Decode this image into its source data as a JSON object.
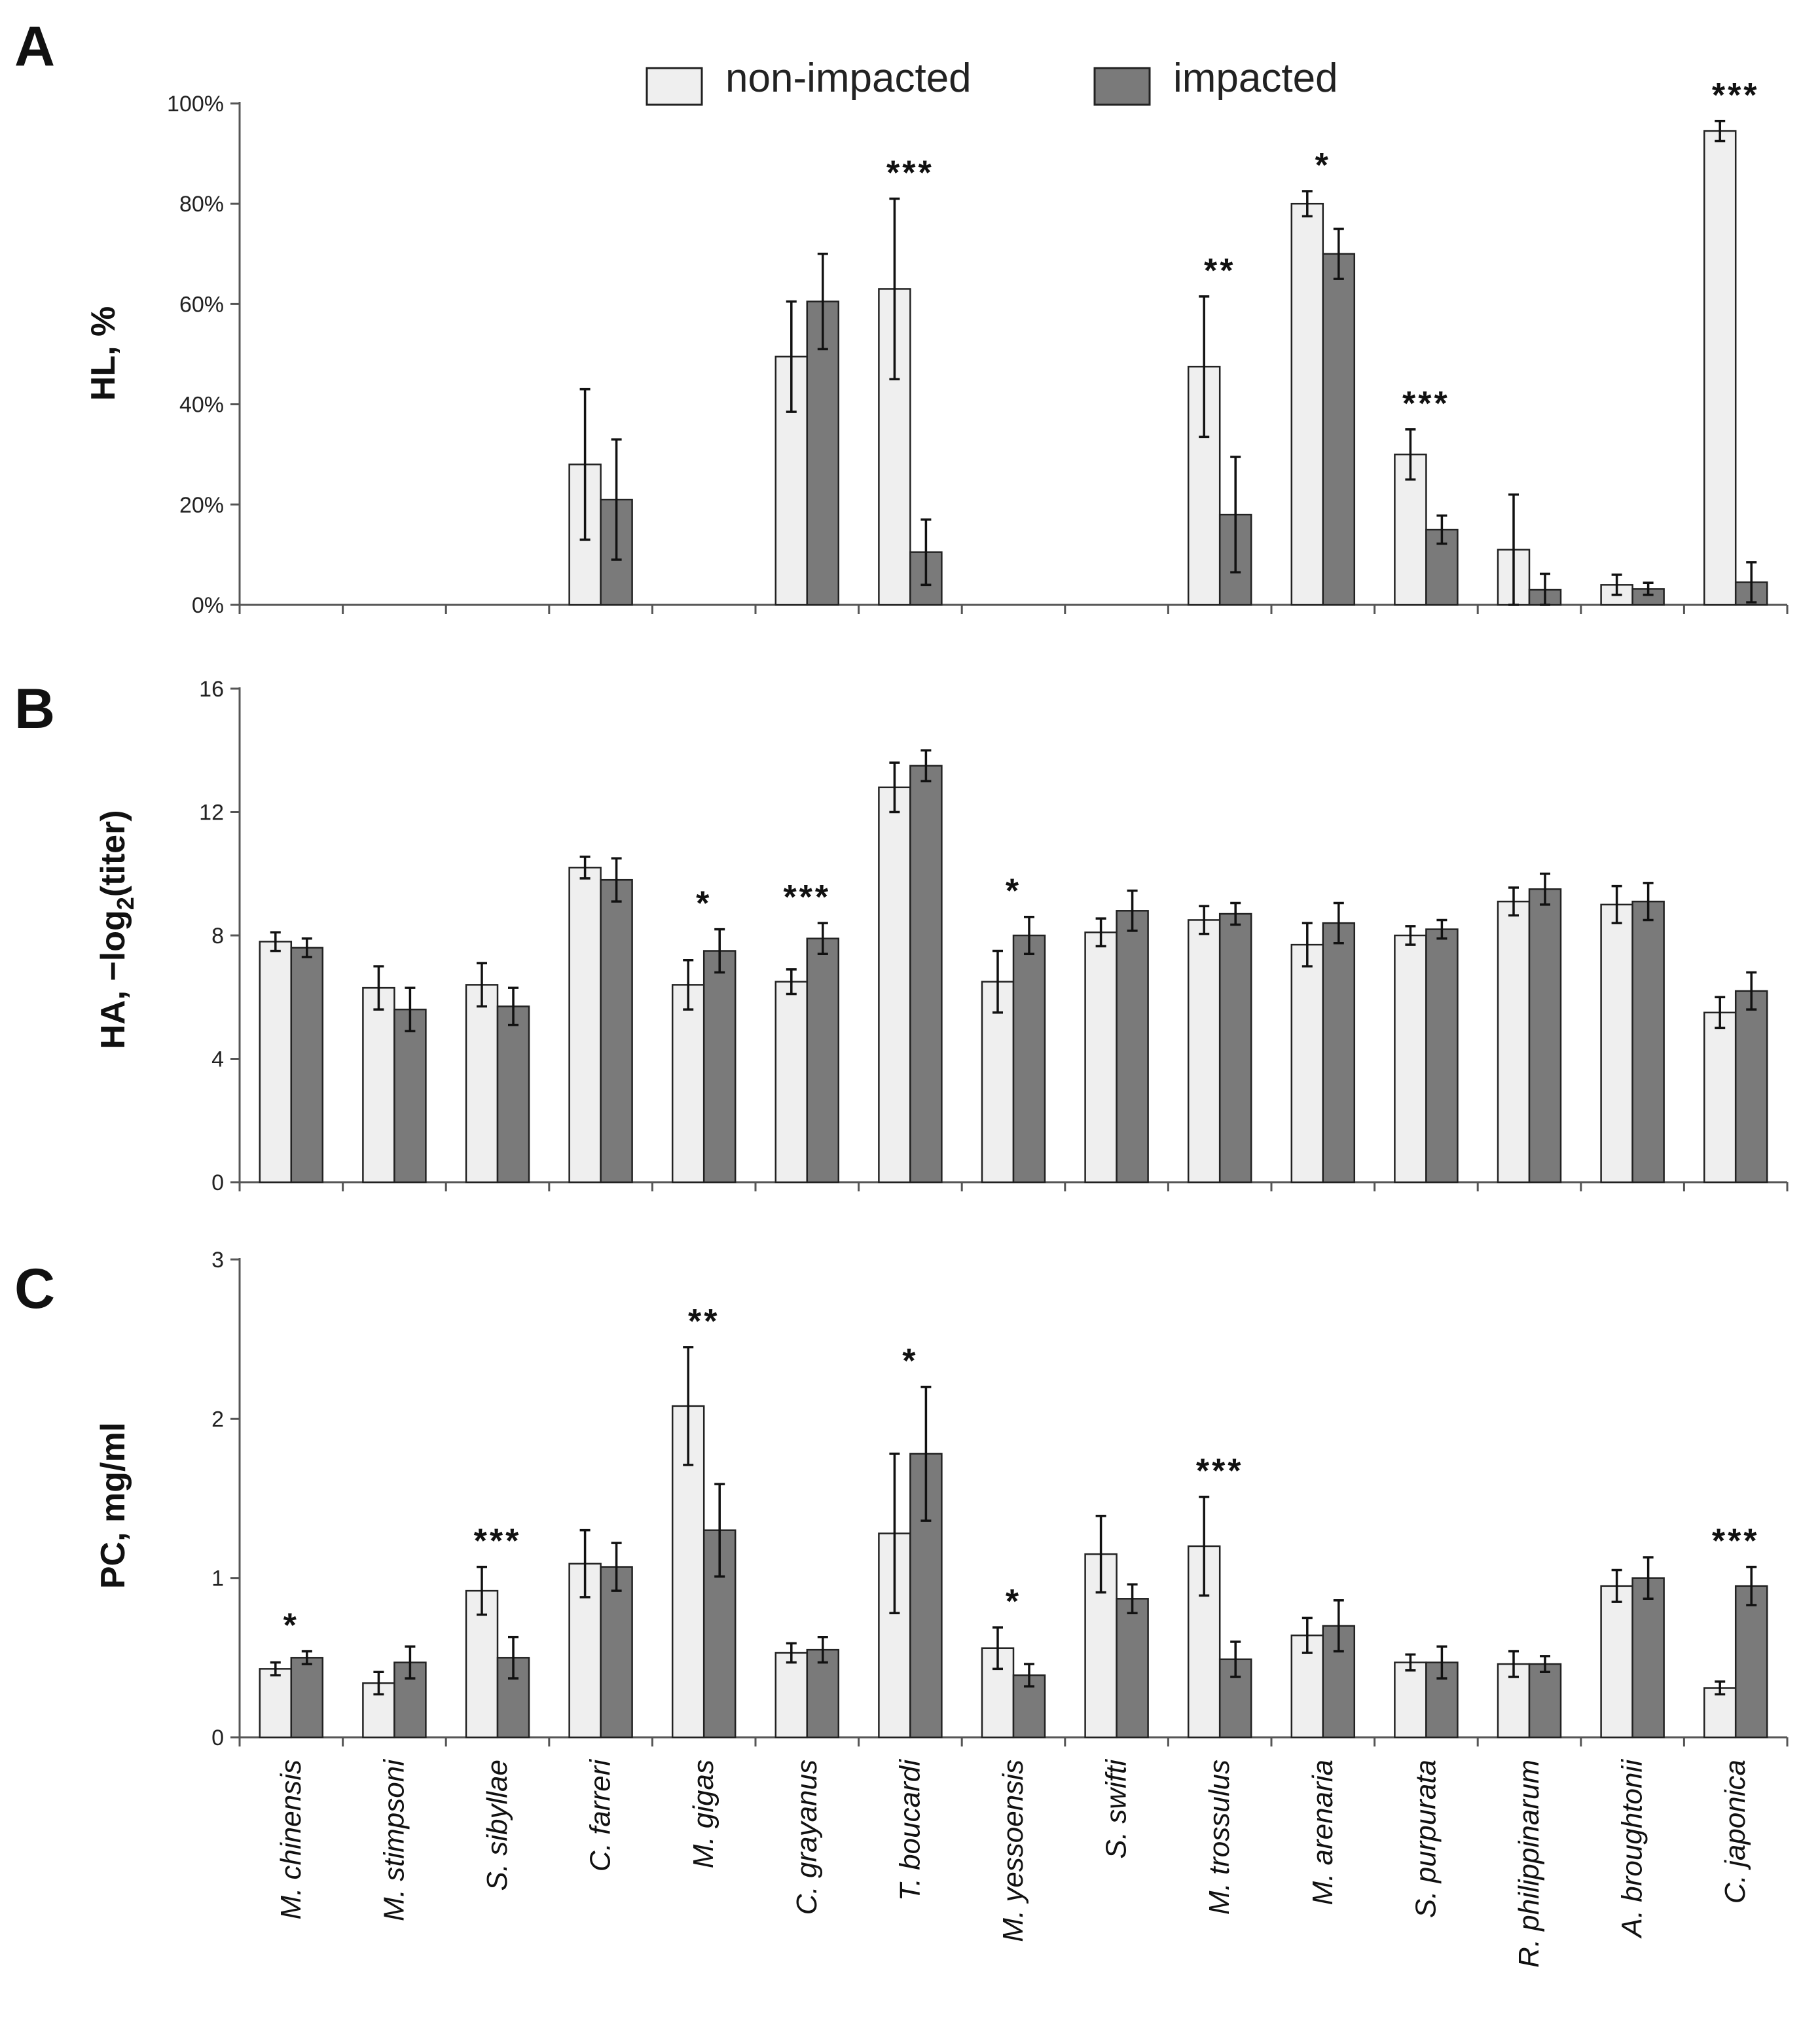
{
  "colors": {
    "non_impacted": "#efefef",
    "impacted": "#7a7a7a",
    "stroke": "#222222"
  },
  "chart_data": {
    "type": "bar",
    "legend": [
      {
        "name": "non-impacted",
        "color": "#efefef"
      },
      {
        "name": "impacted",
        "color": "#7a7a7a"
      }
    ],
    "legend_position": "top-center",
    "categories": [
      "M. chinensis",
      "M. stimpsoni",
      "S. sibyllae",
      "C. farreri",
      "M. gigas",
      "C. grayanus",
      "T. boucardi",
      "M. yessoensis",
      "S. swifti",
      "M. trossulus",
      "M. arenaria",
      "S. purpurata",
      "R. philippinarum",
      "A. broughtonii",
      "C. japonica"
    ],
    "panels": [
      {
        "label": "A",
        "ylabel": "HL, %",
        "ylim": [
          0,
          100
        ],
        "yticks": [
          0,
          20,
          40,
          60,
          80,
          100
        ],
        "ytick_labels": [
          "0%",
          "20%",
          "40%",
          "60%",
          "80%",
          "100%"
        ],
        "series": [
          {
            "name": "non-impacted",
            "values": [
              null,
              null,
              null,
              28,
              null,
              49.5,
              63,
              null,
              null,
              47.5,
              80,
              30,
              11,
              4,
              94.5
            ],
            "errors": [
              null,
              null,
              null,
              15,
              null,
              11,
              18,
              null,
              null,
              14,
              2.5,
              5,
              11,
              2,
              2
            ]
          },
          {
            "name": "impacted",
            "values": [
              null,
              null,
              null,
              21,
              null,
              60.5,
              10.5,
              null,
              null,
              18,
              70,
              15,
              3,
              3.2,
              4.5
            ],
            "errors": [
              null,
              null,
              null,
              12,
              null,
              9.5,
              6.5,
              null,
              null,
              11.5,
              5,
              2.8,
              3.2,
              1.2,
              4
            ]
          }
        ],
        "significance": [
          "",
          "",
          "",
          "",
          "",
          "",
          "***",
          "",
          "",
          "**",
          "*",
          "***",
          "",
          "",
          "***"
        ]
      },
      {
        "label": "B",
        "ylabel": "HA, −log",
        "ylabel_sub": "2",
        "ylabel_end": "(titer)",
        "ylim": [
          0,
          16
        ],
        "yticks": [
          0,
          4,
          8,
          12,
          16
        ],
        "ytick_labels": [
          "0",
          "4",
          "8",
          "12",
          "16"
        ],
        "series": [
          {
            "name": "non-impacted",
            "values": [
              7.8,
              6.3,
              6.4,
              10.2,
              6.4,
              6.5,
              12.8,
              6.5,
              8.1,
              8.5,
              7.7,
              8.0,
              9.1,
              9.0,
              5.5
            ],
            "errors": [
              0.3,
              0.7,
              0.7,
              0.35,
              0.8,
              0.4,
              0.8,
              1.0,
              0.45,
              0.45,
              0.7,
              0.3,
              0.45,
              0.6,
              0.5
            ]
          },
          {
            "name": "impacted",
            "values": [
              7.6,
              5.6,
              5.7,
              9.8,
              7.5,
              7.9,
              13.5,
              8.0,
              8.8,
              8.7,
              8.4,
              8.2,
              9.5,
              9.1,
              6.2
            ]
          },
          {
            "name": "impacted_errors",
            "values": [
              0.3,
              0.7,
              0.6,
              0.7,
              0.7,
              0.5,
              0.5,
              0.6,
              0.65,
              0.35,
              0.65,
              0.3,
              0.5,
              0.6,
              0.6
            ]
          }
        ],
        "significance": [
          "",
          "",
          "",
          "",
          "*",
          "***",
          "",
          "*",
          "",
          "",
          "",
          "",
          "",
          "",
          ""
        ]
      },
      {
        "label": "C",
        "ylabel": "PC, mg/ml",
        "ylim": [
          0,
          3
        ],
        "yticks": [
          0,
          1,
          2,
          3
        ],
        "ytick_labels": [
          "0",
          "1",
          "2",
          "3"
        ],
        "series": [
          {
            "name": "non-impacted",
            "values": [
              0.43,
              0.34,
              0.92,
              1.09,
              2.08,
              0.53,
              1.28,
              0.56,
              1.15,
              1.2,
              0.64,
              0.47,
              0.46,
              0.95,
              0.31
            ],
            "errors": [
              0.04,
              0.07,
              0.15,
              0.21,
              0.37,
              0.06,
              0.5,
              0.13,
              0.24,
              0.31,
              0.11,
              0.05,
              0.08,
              0.1,
              0.04
            ]
          },
          {
            "name": "impacted",
            "values": [
              0.5,
              0.47,
              0.5,
              1.07,
              1.3,
              0.55,
              1.78,
              0.39,
              0.87,
              0.49,
              0.7,
              0.47,
              0.46,
              1.0,
              0.95
            ],
            "errors": [
              0.04,
              0.1,
              0.13,
              0.15,
              0.29,
              0.08,
              0.42,
              0.07,
              0.09,
              0.11,
              0.16,
              0.1,
              0.05,
              0.13,
              0.12
            ]
          }
        ],
        "significance": [
          "*",
          "",
          "***",
          "",
          "**",
          "",
          "*",
          "*",
          "",
          "***",
          "",
          "",
          "",
          "",
          "***"
        ]
      }
    ]
  }
}
